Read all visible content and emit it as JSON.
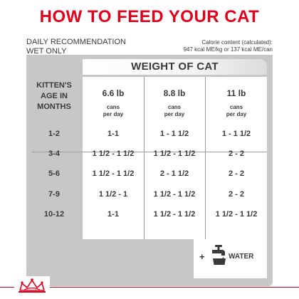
{
  "title": "HOW TO FEED YOUR CAT",
  "recommendation": {
    "line1": "DAILY RECOMMENDATION",
    "line2": "WET ONLY"
  },
  "calorie": {
    "line1": "Calorie content (calculated):",
    "line2": "947 kcal ME/kg or 137 kcal ME/can"
  },
  "table": {
    "weight_header": "WEIGHT OF CAT",
    "age_header": [
      "KITTEN'S",
      "AGE IN",
      "MONTHS"
    ],
    "weights": [
      {
        "value": "6.6 lb",
        "unit1": "cans",
        "unit2": "per day"
      },
      {
        "value": "8.8 lb",
        "unit1": "cans",
        "unit2": "per day"
      },
      {
        "value": "11 lb",
        "unit1": "cans",
        "unit2": "per day"
      }
    ],
    "rows": [
      {
        "age": "1-2",
        "values": [
          "1-1",
          "1 - 1 1/2",
          "1 - 1 1/2"
        ]
      },
      {
        "age": "3-4",
        "values": [
          "1 1/2 - 1 1/2",
          "1 1/2 - 1 1/2",
          "2 - 2"
        ]
      },
      {
        "age": "5-6",
        "values": [
          "1 1/2 - 1 1/2",
          "2 - 1 1/2",
          "2 - 2"
        ]
      },
      {
        "age": "7-9",
        "values": [
          "1 1/2 - 1",
          "1 1/2 - 1 1/2",
          "2 - 2"
        ]
      },
      {
        "age": "10-12",
        "values": [
          "1-1",
          "1 1/2 - 1 1/2",
          "1 1/2 - 1 1/2"
        ]
      }
    ]
  },
  "water": {
    "plus": "+",
    "label": "WATER",
    "icon": "faucet-icon"
  },
  "logo_icon": "crown-logo-icon",
  "colors": {
    "brand_red": "#e2001a",
    "panel_grey": "#c7c7c7",
    "text": "#3a3a3a"
  }
}
